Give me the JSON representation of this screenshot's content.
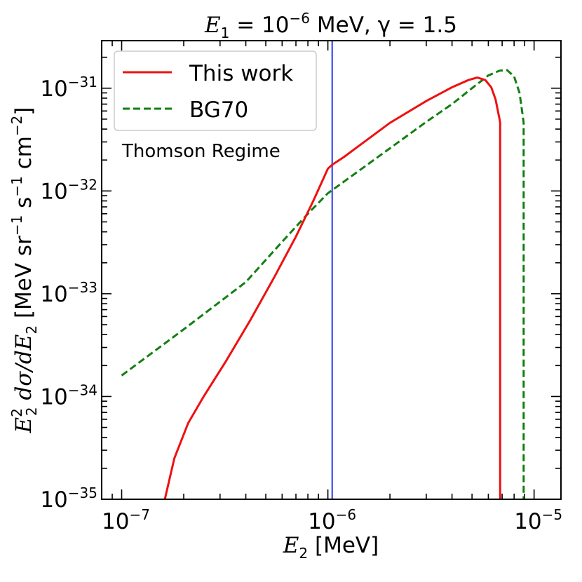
{
  "chart_data": {
    "type": "line",
    "title": {
      "prefix": "E",
      "sub": "1",
      "eq": " = 10",
      "exp": "−6",
      "unit": " MeV, γ = 1.5"
    },
    "xlabel": {
      "var": "E",
      "sub": "2",
      "unit": " [MeV]"
    },
    "ylabel": {
      "var": "E",
      "sub": "2",
      "sup": "2",
      "mid": " dσ/dE",
      "sub2": "2",
      "unit1": " [MeV sr",
      "exp1": "−1",
      "unit2": " s",
      "exp2": "−1",
      "unit3": " cm",
      "exp3": "−2",
      "unit4": "]"
    },
    "x_scale": "log",
    "y_scale": "log",
    "xlim": [
      8e-08,
      1.35e-05
    ],
    "ylim": [
      1e-35,
      2.9e-31
    ],
    "x_ticks": [
      {
        "value": 1e-07,
        "base": "10",
        "exp": "−7"
      },
      {
        "value": 1e-06,
        "base": "10",
        "exp": "−6"
      },
      {
        "value": 1e-05,
        "base": "10",
        "exp": "−5"
      }
    ],
    "y_ticks": [
      {
        "value": 1e-35,
        "base": "10",
        "exp": "−35"
      },
      {
        "value": 1e-34,
        "base": "10",
        "exp": "−34"
      },
      {
        "value": 1e-33,
        "base": "10",
        "exp": "−33"
      },
      {
        "value": 1e-32,
        "base": "10",
        "exp": "−32"
      },
      {
        "value": 1e-31,
        "base": "10",
        "exp": "−31"
      }
    ],
    "vline": {
      "x": 1.05e-06,
      "color": "#5560ee"
    },
    "annotation": "Thomson Regime",
    "legend_position": "upper-left",
    "series": [
      {
        "name": "This work",
        "color": "#ee1111",
        "dash": "solid",
        "points": [
          [
            1.62e-07,
            1e-35
          ],
          [
            1.8e-07,
            2.5e-35
          ],
          [
            2.1e-07,
            5.5e-35
          ],
          [
            2.5e-07,
            1e-34
          ],
          [
            3.2e-07,
            2.2e-34
          ],
          [
            4.2e-07,
            5.5e-34
          ],
          [
            5.5e-07,
            1.45e-33
          ],
          [
            7e-07,
            3.6e-33
          ],
          [
            8.5e-07,
            8e-33
          ],
          [
            1e-06,
            1.65e-32
          ],
          [
            1.05e-06,
            1.8e-32
          ],
          [
            1.2e-06,
            2.15e-32
          ],
          [
            1.5e-06,
            3e-32
          ],
          [
            2e-06,
            4.6e-32
          ],
          [
            3e-06,
            7.5e-32
          ],
          [
            4e-06,
            1.02e-31
          ],
          [
            4.8e-06,
            1.2e-31
          ],
          [
            5.3e-06,
            1.27e-31
          ],
          [
            5.8e-06,
            1.2e-31
          ],
          [
            6.2e-06,
            1.02e-31
          ],
          [
            6.5e-06,
            7.8e-32
          ],
          [
            6.8e-06,
            5e-32
          ],
          [
            6.85e-06,
            4.6e-32
          ],
          [
            6.85e-06,
            1e-35
          ]
        ]
      },
      {
        "name": "BG70",
        "color": "#118011",
        "dash": "dashed",
        "points": [
          [
            1e-07,
            1.6e-34
          ],
          [
            2e-07,
            4.5e-34
          ],
          [
            4e-07,
            1.3e-33
          ],
          [
            6e-07,
            3.2e-33
          ],
          [
            8e-07,
            6e-33
          ],
          [
            1e-06,
            9.5e-33
          ],
          [
            2e-06,
            2.6e-32
          ],
          [
            3e-06,
            4.7e-32
          ],
          [
            4e-06,
            7e-32
          ],
          [
            5e-06,
            1e-31
          ],
          [
            6e-06,
            1.33e-31
          ],
          [
            6.8e-06,
            1.48e-31
          ],
          [
            7.4e-06,
            1.5e-31
          ],
          [
            8e-06,
            1.3e-31
          ],
          [
            8.5e-06,
            9e-32
          ],
          [
            8.8e-06,
            5.5e-32
          ],
          [
            8.9e-06,
            4.6e-32
          ],
          [
            8.9e-06,
            1e-35
          ]
        ]
      }
    ]
  }
}
